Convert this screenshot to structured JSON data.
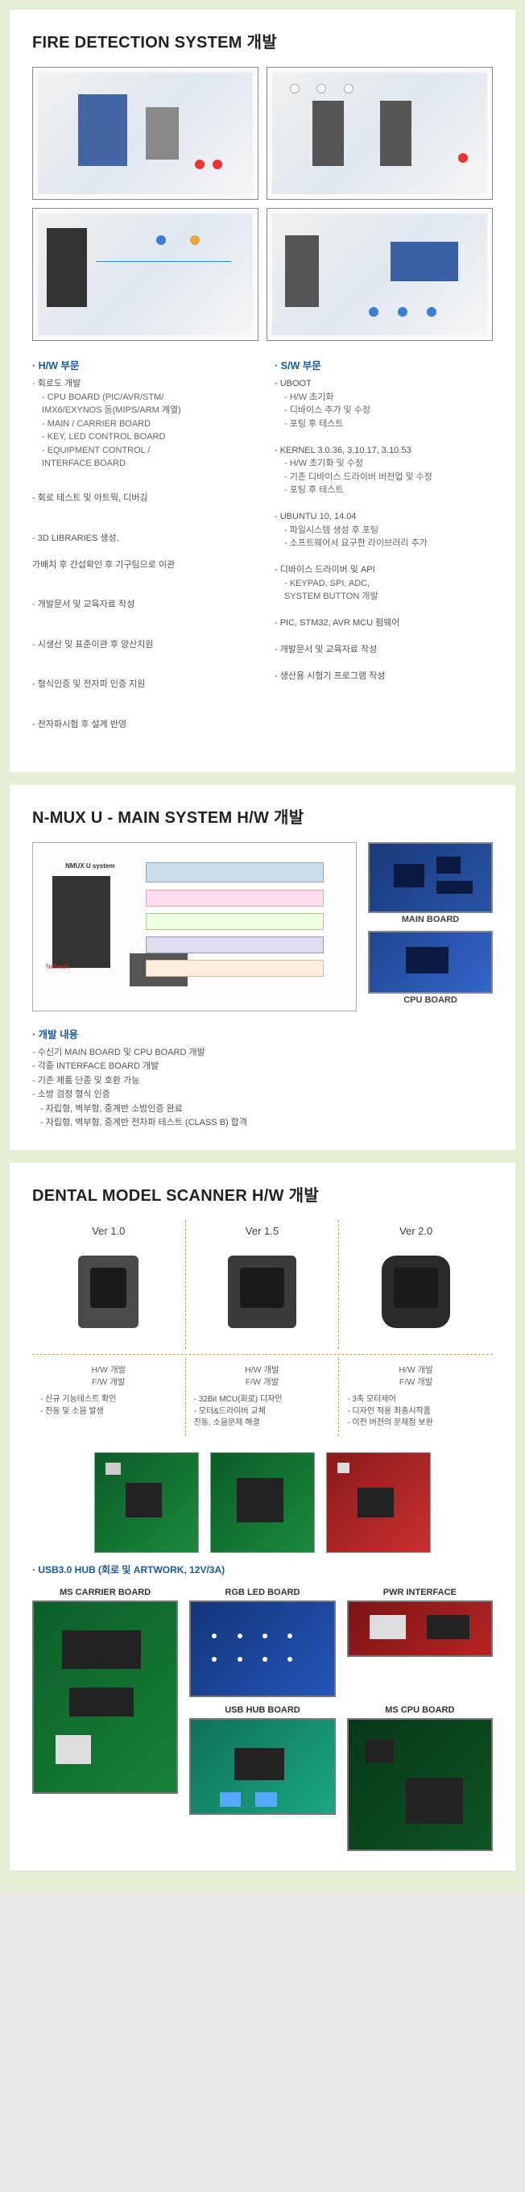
{
  "section1": {
    "title": "FIRE DETECTION SYSTEM 개발",
    "hw_head": "· H/W 부문",
    "hw_items": [
      "· 회로도 개발",
      "  - CPU BOARD (PIC/AVR/STM/",
      "    IMX6/EXYNOS 등(MIPS/ARM 계열)",
      "  - MAIN / CARRIER BOARD",
      "  - KEY, LED CONTROL BOARD",
      "  - EQUIPMENT CONTROL /",
      "    INTERFACE BOARD"
    ],
    "hw_items2": [
      "- 회로 테스트 및 아트웍, 디버깅",
      "",
      "- 3D LIBRARIES 생성,",
      "  가배치 후 간섭확인 후 기구팀으로 이관",
      "",
      "- 개발문서 및 교육자료 작성",
      "",
      "- 시생산 및 표준이관 후 양산지원",
      "",
      "- 형식인증 및 전자파 인증 지원",
      "",
      "- 전자파시험 후 설계 반영"
    ],
    "sw_head": "· S/W 부문",
    "sw_items": [
      "- UBOOT",
      "  - H/W 초기화",
      "  - 디바이스 추가 및 수정",
      "  - 포팅 후 테스트",
      "",
      "- KERNEL 3.0.36, 3.10.17, 3.10.53",
      "  - H/W 초기화 및 수정",
      "  - 기존 디바이스 드라이버 버전업 및 수정",
      "  - 포팅 후 테스트",
      "",
      "- UBUNTU 10, 14.04",
      "  - 파일시스템 생성 후 포팅",
      "  - 소프트웨어서 요구한 라이브러리 추가",
      "",
      "- 디바이스 드라이버 및 API",
      "  - KEYPAD, SPI, ADC,",
      "    SYSTEM BUTTON 개발",
      "",
      "- PIC, STM32, AVR MCU 펌웨어",
      "",
      "- 개발문서 및 교육자료 작성",
      "",
      "- 생산용 시험기 프로그램 작성"
    ]
  },
  "section2": {
    "title": "N-MUX U - MAIN SYSTEM H/W 개발",
    "main_board_label": "MAIN BOARD",
    "cpu_board_label": "CPU BOARD",
    "dev_head": "· 개발 내용",
    "dev_items": [
      "- 수신기 MAIN BOARD 및 CPU BOARD 개발",
      "- 각종 INTERFACE BOARD 개발",
      "- 기존 제품 단종 및 호환 가능",
      "- 소방 검정 형식 인증",
      "  - 자립형, 벽부형, 중계반 소방인증 완료",
      "  - 자립형, 벽부형, 중계반 전자파 테스트 (CLASS B) 합격"
    ]
  },
  "section3": {
    "title": "DENTAL MODEL SCANNER H/W 개발",
    "versions": [
      {
        "title": "Ver 1.0",
        "desc_head": "H/W 개발\nF/W 개발",
        "items": [
          "- 신규 기능테스트 확인",
          "- 진동 및 소음 발생"
        ]
      },
      {
        "title": "Ver 1.5",
        "desc_head": "H/W 개발\nF/W 개발",
        "items": [
          "- 32Bit MCU(회로) 디자인",
          "- 모터&드라이버 교체",
          "  진동, 소음문제 해결"
        ]
      },
      {
        "title": "Ver 2.0",
        "desc_head": "H/W 개발\nF/W 개발",
        "items": [
          "- 3축 모터제어",
          "- 디자인 적용 최종시작품",
          "- 이전 버전의 문제점 보완"
        ]
      }
    ],
    "usb_note": "· USB3.0 HUB (회로 및 ARTWORK, 12V/3A)",
    "board_labels": {
      "ms_carrier": "MS CARRIER BOARD",
      "rgb_led": "RGB LED BOARD",
      "pwr": "PWR INTERFACE",
      "usb_hub": "USB HUB BOARD",
      "ms_cpu": "MS CPU BOARD"
    }
  }
}
